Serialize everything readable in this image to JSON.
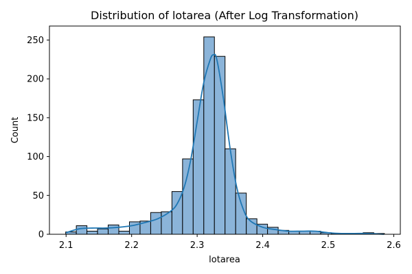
{
  "chart_data": {
    "type": "bar",
    "title": "Distribution of lotarea (After Log Transformation)",
    "xlabel": "lotarea",
    "ylabel": "Count",
    "xlim": [
      2.0746,
      2.61
    ],
    "ylim": [
      0,
      268
    ],
    "xticks": [
      2.1,
      2.2,
      2.3,
      2.4,
      2.5,
      2.6
    ],
    "xtick_labels": [
      "2.1",
      "2.2",
      "2.3",
      "2.4",
      "2.5",
      "2.6"
    ],
    "yticks": [
      0,
      50,
      100,
      150,
      200,
      250
    ],
    "ytick_labels": [
      "0",
      "50",
      "100",
      "150",
      "200",
      "250"
    ],
    "bin_start": 2.0994,
    "bin_width": 0.01621,
    "counts": [
      3,
      11,
      4,
      7,
      12,
      4,
      16,
      17,
      28,
      29,
      55,
      97,
      173,
      254,
      229,
      110,
      53,
      20,
      13,
      9,
      5,
      4,
      4,
      4,
      2,
      1,
      1,
      0,
      2,
      1
    ],
    "kde": {
      "x": [
        2.1,
        2.12,
        2.14,
        2.16,
        2.18,
        2.2,
        2.22,
        2.24,
        2.26,
        2.27,
        2.28,
        2.29,
        2.3,
        2.31,
        2.32,
        2.325,
        2.33,
        2.34,
        2.35,
        2.36,
        2.37,
        2.38,
        2.4,
        2.42,
        2.44,
        2.46,
        2.48,
        2.5,
        2.52,
        2.54,
        2.56,
        2.585
      ],
      "y": [
        2,
        7,
        8,
        8,
        9,
        11,
        15,
        20,
        30,
        40,
        60,
        95,
        145,
        195,
        225,
        231,
        225,
        175,
        112,
        62,
        33,
        18,
        9,
        6,
        4,
        4,
        4,
        2,
        1,
        1,
        1,
        0
      ]
    },
    "bar_color": "#8bb4d9",
    "bar_edge_color": "#000000",
    "kde_color": "#1f77b4",
    "grid": false,
    "legend": "none"
  }
}
